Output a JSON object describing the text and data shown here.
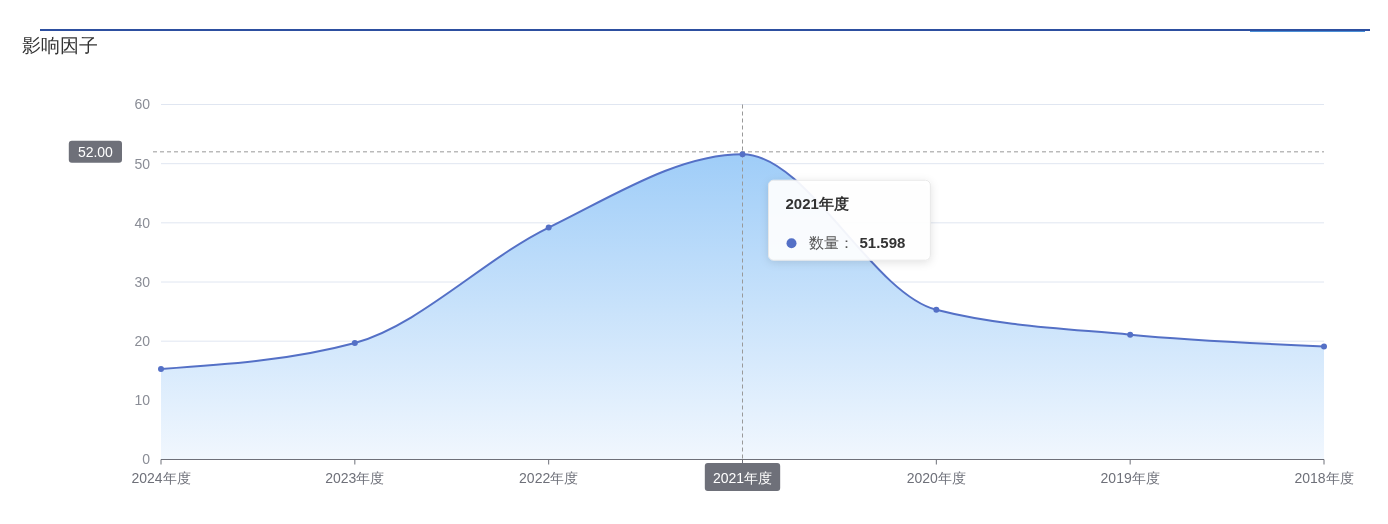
{
  "chart_data": {
    "type": "area",
    "title": "影响因子",
    "categories": [
      "2024年度",
      "2023年度",
      "2022年度",
      "2021年度",
      "2020年度",
      "2019年度",
      "2018年度"
    ],
    "series": [
      {
        "name": "数量：",
        "color": "#5470c6",
        "values": [
          15.3,
          19.7,
          39.2,
          51.598,
          25.3,
          21.1,
          19.1
        ]
      }
    ],
    "ylim": [
      0,
      60
    ],
    "yticks": [
      0,
      10,
      20,
      30,
      40,
      50,
      60
    ],
    "grid": "y",
    "marker": "circle",
    "ref_lines": [
      {
        "axis": "y",
        "value": 52,
        "label": "52.00",
        "color": "#999999",
        "line_style": "dashed"
      },
      {
        "axis": "x",
        "value": "2021年度",
        "color": "#999999",
        "line_style": "dashed"
      }
    ],
    "annotations": [
      "51.598"
    ]
  }
}
